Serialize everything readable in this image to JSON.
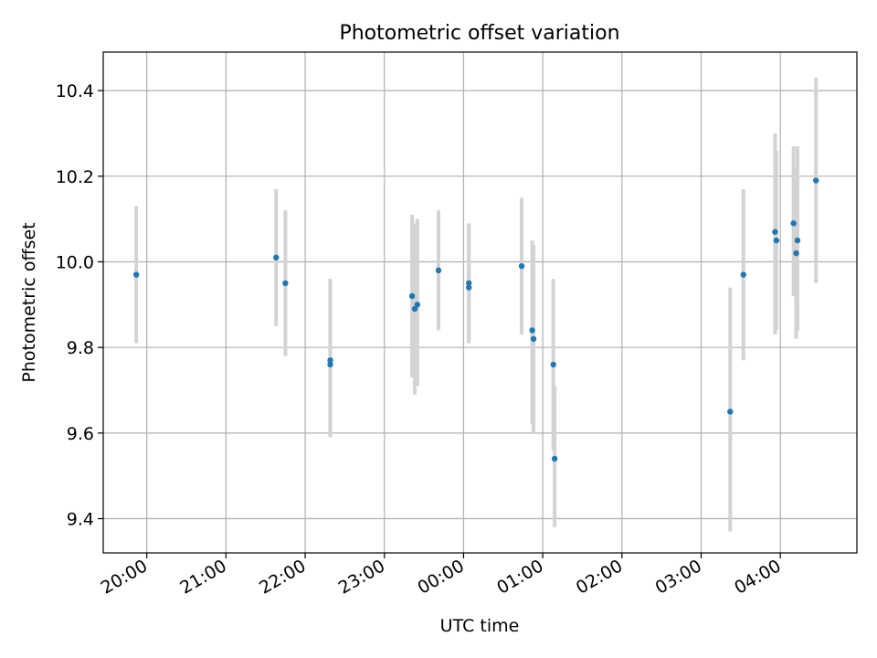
{
  "chart_data": {
    "type": "scatter",
    "title": "Photometric offset variation",
    "xlabel": "UTC time",
    "ylabel": "Photometric offset",
    "xlim": [
      "19:27",
      "04:58"
    ],
    "ylim": [
      9.32,
      10.49
    ],
    "grid": true,
    "x_ticks": [
      "20:00",
      "21:00",
      "22:00",
      "23:00",
      "00:00",
      "01:00",
      "02:00",
      "03:00",
      "04:00"
    ],
    "y_ticks": [
      9.4,
      9.6,
      9.8,
      10.0,
      10.2,
      10.4
    ],
    "y_tick_labels": [
      "9.4",
      "9.6",
      "9.8",
      "10.0",
      "10.2",
      "10.4"
    ],
    "colors": {
      "point": "#1f77b4",
      "errorbar": "#d3d3d3",
      "grid": "#b0b0b0"
    },
    "series": [
      {
        "points": [
          {
            "x": "19:52",
            "y": 9.97,
            "err": [
              9.81,
              10.13
            ]
          },
          {
            "x": "21:38",
            "y": 10.01,
            "err": [
              9.85,
              10.17
            ]
          },
          {
            "x": "21:45",
            "y": 9.95,
            "err": [
              9.78,
              10.12
            ]
          },
          {
            "x": "22:19",
            "y": 9.77,
            "err": [
              9.59,
              9.96
            ]
          },
          {
            "x": "22:19",
            "y": 9.76,
            "err": [
              9.59,
              9.96
            ]
          },
          {
            "x": "23:21",
            "y": 9.92,
            "err": [
              9.73,
              10.11
            ]
          },
          {
            "x": "23:23",
            "y": 9.89,
            "err": [
              9.69,
              10.09
            ]
          },
          {
            "x": "23:25",
            "y": 9.9,
            "err": [
              9.71,
              10.1
            ]
          },
          {
            "x": "23:41",
            "y": 9.98,
            "err": [
              9.84,
              10.12
            ]
          },
          {
            "x": "00:04",
            "y": 9.94,
            "err": [
              9.81,
              10.08
            ]
          },
          {
            "x": "00:04",
            "y": 9.95,
            "err": [
              9.81,
              10.09
            ]
          },
          {
            "x": "00:44",
            "y": 9.99,
            "err": [
              9.83,
              10.15
            ]
          },
          {
            "x": "00:52",
            "y": 9.84,
            "err": [
              9.62,
              10.05
            ]
          },
          {
            "x": "00:53",
            "y": 9.82,
            "err": [
              9.6,
              10.04
            ]
          },
          {
            "x": "01:08",
            "y": 9.76,
            "err": [
              9.56,
              9.96
            ]
          },
          {
            "x": "01:09",
            "y": 9.54,
            "err": [
              9.38,
              9.71
            ]
          },
          {
            "x": "03:22",
            "y": 9.65,
            "err": [
              9.37,
              9.94
            ]
          },
          {
            "x": "03:32",
            "y": 9.97,
            "err": [
              9.77,
              10.17
            ]
          },
          {
            "x": "03:56",
            "y": 10.07,
            "err": [
              9.83,
              10.3
            ]
          },
          {
            "x": "03:57",
            "y": 10.05,
            "err": [
              9.84,
              10.26
            ]
          },
          {
            "x": "04:10",
            "y": 10.09,
            "err": [
              9.92,
              10.27
            ]
          },
          {
            "x": "04:12",
            "y": 10.02,
            "err": [
              9.82,
              10.22
            ]
          },
          {
            "x": "04:13",
            "y": 10.05,
            "err": [
              9.84,
              10.27
            ]
          },
          {
            "x": "04:27",
            "y": 10.19,
            "err": [
              9.95,
              10.43
            ]
          }
        ]
      }
    ]
  }
}
